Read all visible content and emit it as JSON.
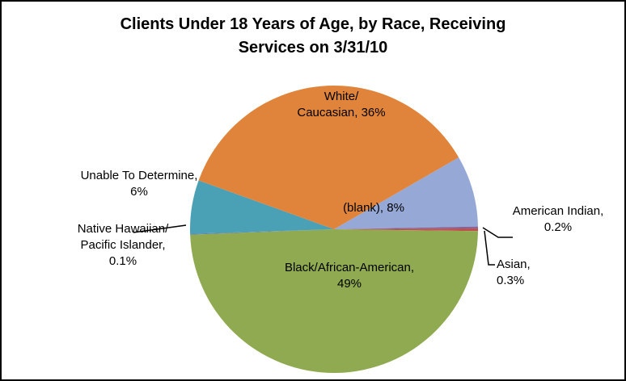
{
  "chart_data": {
    "type": "pie",
    "title": "Clients  Under 18 Years of Age, by Race, Receiving Services on 3/31/10",
    "values": [
      8,
      0.2,
      0.3,
      49,
      0.1,
      6,
      36
    ],
    "value_labels": [
      "(blank), 8%",
      "American Indian, 0.2%",
      "Asian, 0.3%",
      "Black/African-American, 49%",
      "Native Hawaiian/ Pacific Islander, 0.1%",
      "Unable To Determine, 6%",
      "White/ Caucasian, 36%"
    ],
    "colors": [
      "#95a8d6",
      "#8064a2",
      "#c0504d",
      "#8faa50",
      "#5b7fb0",
      "#4aa0b5",
      "#e0843c"
    ]
  }
}
